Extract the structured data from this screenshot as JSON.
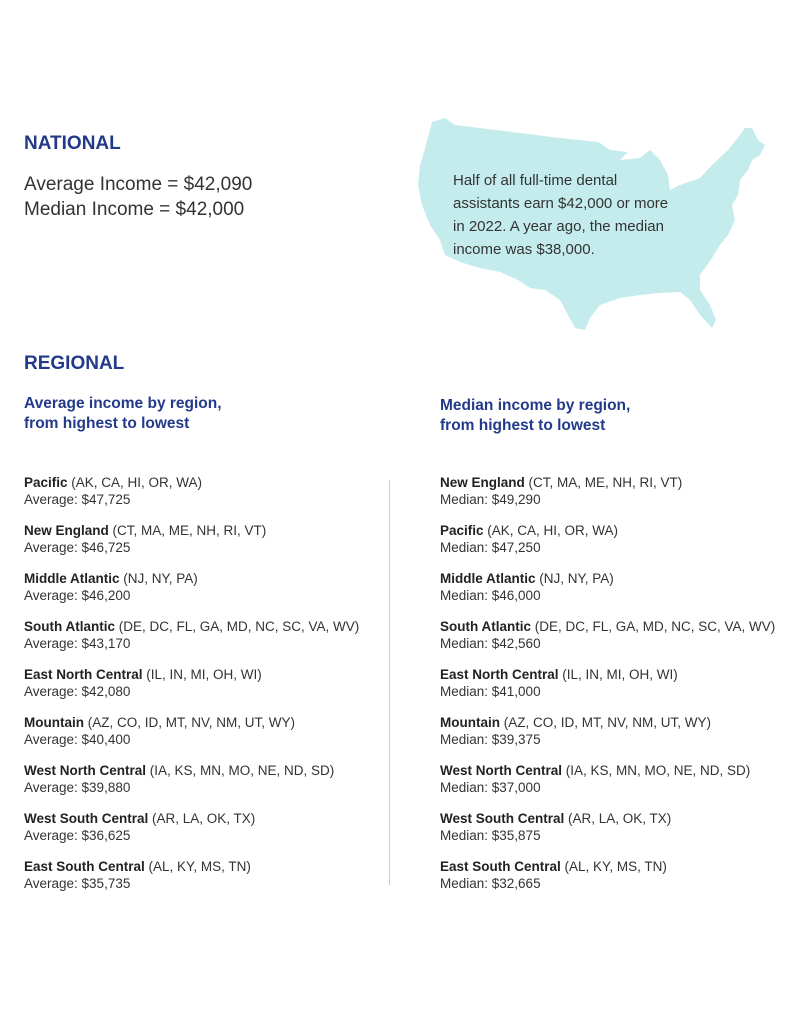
{
  "national": {
    "heading": "NATIONAL",
    "average": "Average Income = $42,090",
    "median": "Median Income = $42,000",
    "note": "Half of all full-time dental assistants earn $42,000 or more in 2022. A year ago, the median income was $38,000.",
    "map_color": "#c5ecec"
  },
  "regional": {
    "heading": "REGIONAL",
    "average_title": [
      "Average income by region,",
      "from highest to lowest"
    ],
    "median_title": [
      "Median income by region,",
      "from highest to lowest"
    ],
    "average": [
      {
        "region": "Pacific",
        "states": "(AK, CA, HI, OR, WA)",
        "value": "Average: $47,725"
      },
      {
        "region": "New England",
        "states": "(CT, MA, ME, NH, RI, VT)",
        "value": "Average: $46,725"
      },
      {
        "region": "Middle Atlantic",
        "states": "(NJ, NY, PA)",
        "value": "Average: $46,200"
      },
      {
        "region": "South Atlantic",
        "states": "(DE, DC, FL, GA, MD, NC, SC, VA, WV)",
        "value": "Average: $43,170"
      },
      {
        "region": "East North Central",
        "states": "(IL, IN, MI, OH, WI)",
        "value": "Average: $42,080"
      },
      {
        "region": "Mountain",
        "states": "(AZ, CO, ID, MT, NV, NM, UT, WY)",
        "value": "Average: $40,400"
      },
      {
        "region": "West North Central",
        "states": "(IA, KS, MN, MO, NE, ND, SD)",
        "value": "Average: $39,880"
      },
      {
        "region": "West South Central",
        "states": "(AR, LA, OK, TX)",
        "value": "Average: $36,625"
      },
      {
        "region": "East South Central",
        "states": "(AL, KY, MS, TN)",
        "value": "Average: $35,735"
      }
    ],
    "median": [
      {
        "region": "New England",
        "states": "(CT, MA, ME, NH, RI, VT)",
        "value": "Median: $49,290"
      },
      {
        "region": "Pacific",
        "states": "(AK, CA, HI, OR, WA)",
        "value": "Median: $47,250"
      },
      {
        "region": "Middle Atlantic",
        "states": "(NJ, NY, PA)",
        "value": "Median: $46,000"
      },
      {
        "region": "South Atlantic",
        "states": "(DE, DC, FL, GA, MD, NC, SC, VA, WV)",
        "value": "Median: $42,560"
      },
      {
        "region": "East North Central",
        "states": "(IL, IN, MI, OH, WI)",
        "value": "Median: $41,000"
      },
      {
        "region": "Mountain",
        "states": "(AZ, CO, ID, MT, NV, NM, UT, WY)",
        "value": "Median: $39,375"
      },
      {
        "region": "West North Central",
        "states": "(IA, KS, MN, MO, NE, ND, SD)",
        "value": "Median: $37,000"
      },
      {
        "region": "West South Central",
        "states": "(AR, LA, OK, TX)",
        "value": "Median: $35,875"
      },
      {
        "region": "East South Central",
        "states": "(AL, KY, MS, TN)",
        "value": "Median: $32,665"
      }
    ]
  }
}
